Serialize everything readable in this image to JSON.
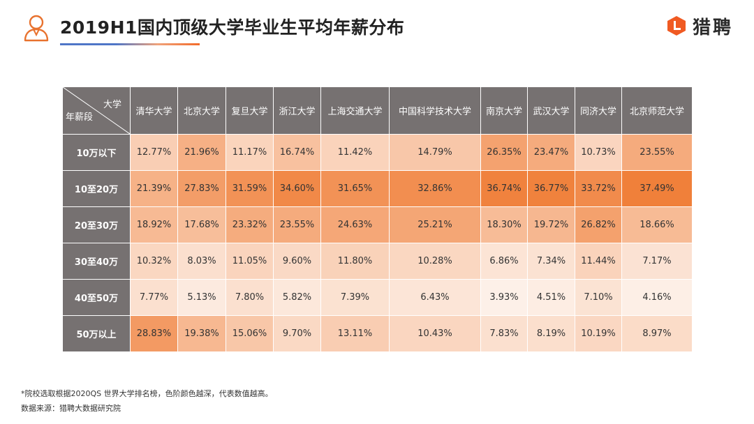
{
  "header": {
    "title": "2019H1国内顶级大学毕业生平均年薪分布",
    "avatar_icon": "person-graduate-icon",
    "brand": {
      "name": "猎聘",
      "logo_icon": "liepin-logo-icon",
      "color": "#f05a22"
    }
  },
  "chart_data": {
    "type": "heatmap",
    "corner_top": "大学",
    "corner_bottom": "年薪段",
    "columns": [
      "清华大学",
      "北京大学",
      "复旦大学",
      "浙江大学",
      "上海交通大学",
      "中国科学技术大学",
      "南京大学",
      "武汉大学",
      "同济大学",
      "北京师范大学"
    ],
    "rows": [
      "10万以下",
      "10至20万",
      "20至30万",
      "30至40万",
      "40至50万",
      "50万以上"
    ],
    "values": [
      [
        12.77,
        21.96,
        11.17,
        16.74,
        11.42,
        14.79,
        26.35,
        23.47,
        10.73,
        23.55
      ],
      [
        21.39,
        27.83,
        31.59,
        34.6,
        31.65,
        32.86,
        36.74,
        36.77,
        33.72,
        37.49
      ],
      [
        18.92,
        17.68,
        23.32,
        23.55,
        24.63,
        25.21,
        18.3,
        19.72,
        26.82,
        18.66
      ],
      [
        10.32,
        8.03,
        11.05,
        9.6,
        11.8,
        10.28,
        6.86,
        7.34,
        11.44,
        7.17
      ],
      [
        7.77,
        5.13,
        7.8,
        5.82,
        7.39,
        6.43,
        3.93,
        4.51,
        7.1,
        4.16
      ],
      [
        28.83,
        19.38,
        15.06,
        9.7,
        13.11,
        10.43,
        7.83,
        8.19,
        10.19,
        8.97
      ]
    ],
    "unit": "%",
    "color_scale": {
      "low": "#fdf0e8",
      "high": "#f0803a"
    },
    "header_color": "#767171"
  },
  "footer": {
    "note": "*院校选取根据2020QS 世界大学排名榜，色阶颜色越深，代表数值越高。",
    "source": "数据来源：猎聘大数据研究院"
  }
}
